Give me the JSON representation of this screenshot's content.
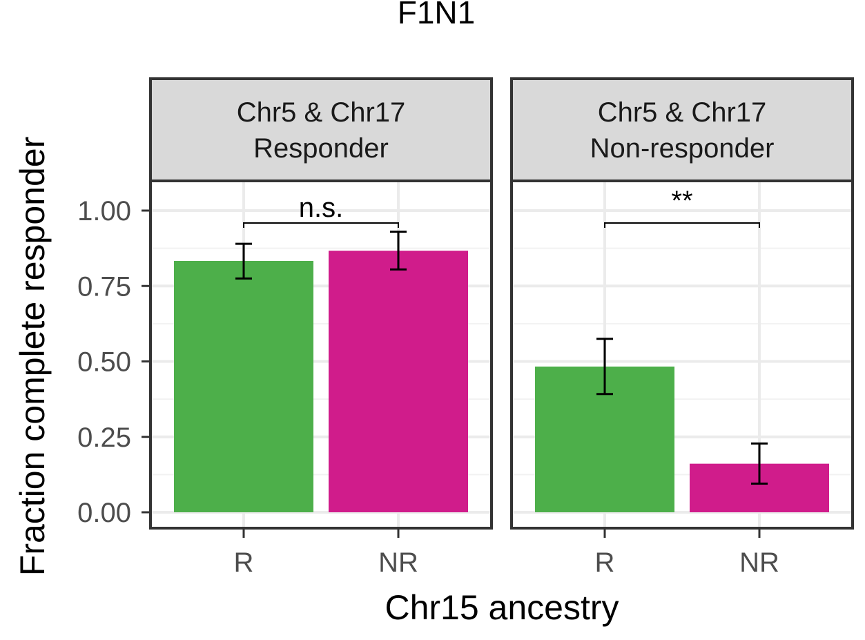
{
  "chart_data": {
    "type": "bar",
    "title": "F1N1",
    "xlabel": "Chr15 ancestry",
    "ylabel": "Fraction complete responder",
    "ylim": [
      0,
      1.1
    ],
    "yticks": [
      "0.00",
      "0.25",
      "0.50",
      "0.75",
      "1.00"
    ],
    "ytick_values": [
      0,
      0.25,
      0.5,
      0.75,
      1.0
    ],
    "categories": [
      "R",
      "NR"
    ],
    "grid": true,
    "legend": "none",
    "colors": {
      "R": "#4daf4a",
      "NR": "#d01c8b"
    },
    "panels": [
      {
        "strip": [
          "Chr5 & Chr17",
          "Responder"
        ],
        "values": [
          0.833,
          0.867
        ],
        "error_low": [
          0.775,
          0.805
        ],
        "error_high": [
          0.89,
          0.93
        ],
        "significance": "n.s."
      },
      {
        "strip": [
          "Chr5 & Chr17",
          "Non-responder"
        ],
        "values": [
          0.483,
          0.161
        ],
        "error_low": [
          0.392,
          0.095
        ],
        "error_high": [
          0.575,
          0.228
        ],
        "significance": "**"
      }
    ]
  }
}
